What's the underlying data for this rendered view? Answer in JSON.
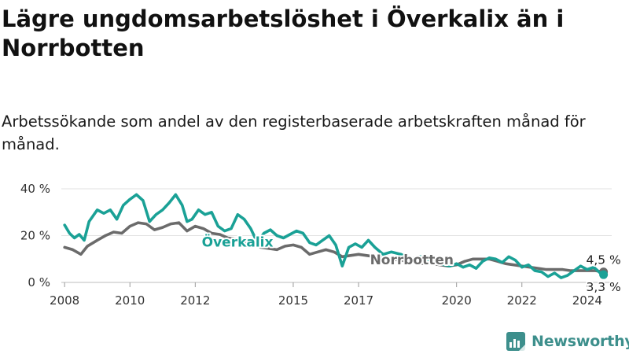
{
  "title": "Lägre ungdomsarbetslöshet i Överkalix än i Norrbotten",
  "subtitle": "Arbetssökande som andel av den registerbaserade arbetskraften månad för månad.",
  "brand": {
    "name": "Newsworthy",
    "color": "#3d8f8c"
  },
  "chart_data": {
    "type": "line",
    "x_tick_labels": [
      "2008",
      "2010",
      "2012",
      "2015",
      "2017",
      "2020",
      "2022",
      "2024"
    ],
    "x_tick_values": [
      2008.0,
      2010.0,
      2012.0,
      2015.0,
      2017.0,
      2020.0,
      2022.0,
      2024.0
    ],
    "y_tick_labels": [
      "0 %",
      "20 %",
      "40 %"
    ],
    "y_tick_values": [
      0,
      20,
      40
    ],
    "ylim": [
      0,
      40
    ],
    "grid": true,
    "series": [
      {
        "name": "Norrbotten",
        "color": "#6b6b6b",
        "end_label": "4,5 %",
        "points": [
          [
            2008.0,
            15
          ],
          [
            2008.25,
            14
          ],
          [
            2008.5,
            12
          ],
          [
            2008.7,
            15.5
          ],
          [
            2009.0,
            18
          ],
          [
            2009.25,
            20
          ],
          [
            2009.5,
            21.5
          ],
          [
            2009.75,
            21
          ],
          [
            2010.0,
            24
          ],
          [
            2010.25,
            25.5
          ],
          [
            2010.5,
            25
          ],
          [
            2010.75,
            22.5
          ],
          [
            2011.0,
            23.5
          ],
          [
            2011.25,
            25
          ],
          [
            2011.5,
            25.5
          ],
          [
            2011.75,
            22
          ],
          [
            2012.0,
            24
          ],
          [
            2012.25,
            23
          ],
          [
            2012.5,
            21
          ],
          [
            2012.75,
            20.5
          ],
          [
            2013.0,
            19
          ],
          [
            2013.25,
            18.5
          ],
          [
            2013.5,
            17.5
          ],
          [
            2013.75,
            16.5
          ],
          [
            2014.0,
            15
          ],
          [
            2014.25,
            14.5
          ],
          [
            2014.5,
            14
          ],
          [
            2014.75,
            15.5
          ],
          [
            2015.0,
            16
          ],
          [
            2015.25,
            15
          ],
          [
            2015.5,
            12
          ],
          [
            2015.75,
            13
          ],
          [
            2016.0,
            14
          ],
          [
            2016.25,
            13
          ],
          [
            2016.5,
            11
          ],
          [
            2016.75,
            11.5
          ],
          [
            2017.0,
            12
          ],
          [
            2017.25,
            11.5
          ],
          [
            2017.5,
            11
          ],
          [
            2017.75,
            10.5
          ],
          [
            2018.0,
            10
          ],
          [
            2018.25,
            9.5
          ],
          [
            2018.5,
            9
          ],
          [
            2018.75,
            8.5
          ],
          [
            2019.0,
            8
          ],
          [
            2019.25,
            8
          ],
          [
            2019.5,
            7.5
          ],
          [
            2019.75,
            7
          ],
          [
            2020.0,
            7.5
          ],
          [
            2020.25,
            9
          ],
          [
            2020.5,
            10
          ],
          [
            2020.75,
            10
          ],
          [
            2021.0,
            10
          ],
          [
            2021.25,
            9
          ],
          [
            2021.5,
            8
          ],
          [
            2021.75,
            7.5
          ],
          [
            2022.0,
            7
          ],
          [
            2022.25,
            6.5
          ],
          [
            2022.5,
            6
          ],
          [
            2022.75,
            5.5
          ],
          [
            2023.0,
            5.5
          ],
          [
            2023.25,
            5.5
          ],
          [
            2023.5,
            5
          ],
          [
            2023.75,
            5
          ],
          [
            2024.0,
            5
          ],
          [
            2024.25,
            5
          ],
          [
            2024.5,
            4.5
          ]
        ]
      },
      {
        "name": "Överkalix",
        "color": "#1aa196",
        "end_label": "3,3 %",
        "points": [
          [
            2008.0,
            24.5
          ],
          [
            2008.15,
            21
          ],
          [
            2008.3,
            19
          ],
          [
            2008.45,
            20.5
          ],
          [
            2008.6,
            18
          ],
          [
            2008.75,
            26
          ],
          [
            2009.0,
            31
          ],
          [
            2009.2,
            29.5
          ],
          [
            2009.4,
            31
          ],
          [
            2009.6,
            27
          ],
          [
            2009.8,
            33
          ],
          [
            2010.0,
            35.5
          ],
          [
            2010.2,
            37.5
          ],
          [
            2010.4,
            35
          ],
          [
            2010.6,
            26
          ],
          [
            2010.8,
            29
          ],
          [
            2011.0,
            31
          ],
          [
            2011.2,
            34
          ],
          [
            2011.4,
            37.5
          ],
          [
            2011.6,
            33
          ],
          [
            2011.75,
            26
          ],
          [
            2011.9,
            27
          ],
          [
            2012.1,
            31
          ],
          [
            2012.3,
            29
          ],
          [
            2012.5,
            30
          ],
          [
            2012.7,
            24
          ],
          [
            2012.9,
            22
          ],
          [
            2013.1,
            23
          ],
          [
            2013.3,
            29
          ],
          [
            2013.5,
            27
          ],
          [
            2013.7,
            23
          ],
          [
            2013.9,
            17
          ],
          [
            2014.1,
            21
          ],
          [
            2014.3,
            22.5
          ],
          [
            2014.5,
            20
          ],
          [
            2014.7,
            19
          ],
          [
            2014.9,
            20.5
          ],
          [
            2015.1,
            22
          ],
          [
            2015.3,
            21
          ],
          [
            2015.5,
            17
          ],
          [
            2015.7,
            16
          ],
          [
            2015.9,
            18
          ],
          [
            2016.1,
            20
          ],
          [
            2016.3,
            16
          ],
          [
            2016.5,
            7
          ],
          [
            2016.7,
            15
          ],
          [
            2016.9,
            16.5
          ],
          [
            2017.1,
            15
          ],
          [
            2017.3,
            18
          ],
          [
            2017.5,
            15
          ],
          [
            2017.75,
            12
          ],
          [
            2018.0,
            13
          ],
          [
            2018.3,
            12
          ],
          [
            2018.6,
            10
          ],
          [
            2018.9,
            11
          ],
          [
            2019.2,
            9
          ],
          [
            2019.5,
            8
          ],
          [
            2019.8,
            7
          ],
          [
            2020.0,
            8
          ],
          [
            2020.2,
            6.5
          ],
          [
            2020.4,
            7.5
          ],
          [
            2020.6,
            6
          ],
          [
            2020.8,
            9
          ],
          [
            2021.0,
            10.5
          ],
          [
            2021.2,
            10
          ],
          [
            2021.4,
            8.5
          ],
          [
            2021.6,
            11
          ],
          [
            2021.8,
            9.5
          ],
          [
            2022.0,
            6.5
          ],
          [
            2022.2,
            7.5
          ],
          [
            2022.4,
            5
          ],
          [
            2022.6,
            4.5
          ],
          [
            2022.8,
            2.5
          ],
          [
            2023.0,
            4
          ],
          [
            2023.2,
            2
          ],
          [
            2023.4,
            3
          ],
          [
            2023.6,
            5
          ],
          [
            2023.8,
            7
          ],
          [
            2024.0,
            5.5
          ],
          [
            2024.2,
            6.5
          ],
          [
            2024.4,
            4
          ],
          [
            2024.5,
            3.3
          ]
        ]
      }
    ]
  }
}
